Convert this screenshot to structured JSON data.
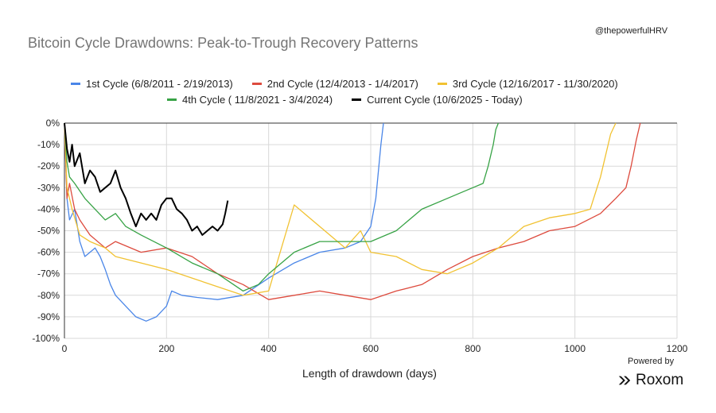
{
  "header": {
    "title": "Bitcoin Cycle Drawdowns: Peak-to-Trough Recovery Patterns",
    "handle": "@thepowerfulHRV"
  },
  "footer": {
    "powered_by": "Powered by",
    "brand": "Roxom"
  },
  "chart_data": {
    "type": "line",
    "xlabel": "Length of drawdown (days)",
    "ylabel": "",
    "xlim": [
      0,
      1200
    ],
    "ylim": [
      -100,
      0
    ],
    "xticks": [
      "0",
      "200",
      "400",
      "600",
      "800",
      "1000",
      "1200"
    ],
    "yticks": [
      "0%",
      "-10%",
      "-20%",
      "-30%",
      "-40%",
      "-50%",
      "-60%",
      "-70%",
      "-80%",
      "-90%",
      "-100%"
    ],
    "grid": true,
    "legend_position": "top",
    "series": [
      {
        "name": "1st Cycle (6/8/2011 -  2/19/2013)",
        "color": "#4a86e8",
        "x": [
          0,
          5,
          10,
          20,
          30,
          40,
          50,
          60,
          70,
          80,
          90,
          100,
          120,
          140,
          160,
          180,
          200,
          210,
          230,
          260,
          300,
          350,
          400,
          450,
          500,
          550,
          580,
          600,
          610,
          620,
          625
        ],
        "y": [
          0,
          -35,
          -45,
          -40,
          -55,
          -62,
          -60,
          -58,
          -62,
          -68,
          -75,
          -80,
          -85,
          -90,
          -92,
          -90,
          -85,
          -78,
          -80,
          -81,
          -82,
          -80,
          -72,
          -65,
          -60,
          -58,
          -55,
          -48,
          -35,
          -10,
          0
        ]
      },
      {
        "name": "2nd Cycle (12/4/2013 - 1/4/2017)",
        "color": "#dd4b3e",
        "x": [
          0,
          5,
          10,
          20,
          30,
          50,
          80,
          100,
          150,
          200,
          250,
          300,
          350,
          400,
          450,
          500,
          550,
          600,
          650,
          700,
          750,
          800,
          850,
          900,
          950,
          1000,
          1050,
          1080,
          1100,
          1110,
          1120,
          1128
        ],
        "y": [
          0,
          -35,
          -28,
          -40,
          -45,
          -52,
          -58,
          -55,
          -60,
          -58,
          -62,
          -70,
          -75,
          -82,
          -80,
          -78,
          -80,
          -82,
          -78,
          -75,
          -68,
          -62,
          -58,
          -55,
          -50,
          -48,
          -42,
          -35,
          -30,
          -20,
          -8,
          0
        ]
      },
      {
        "name": "3rd Cycle (12/16/2017 - 11/30/2020)",
        "color": "#f1c232",
        "x": [
          0,
          5,
          15,
          30,
          50,
          80,
          100,
          150,
          200,
          250,
          300,
          350,
          400,
          450,
          550,
          580,
          600,
          650,
          700,
          750,
          800,
          850,
          900,
          950,
          1000,
          1030,
          1050,
          1060,
          1070,
          1080
        ],
        "y": [
          0,
          -30,
          -40,
          -52,
          -55,
          -58,
          -62,
          -65,
          -68,
          -72,
          -76,
          -80,
          -78,
          -38,
          -58,
          -50,
          -60,
          -62,
          -68,
          -70,
          -65,
          -58,
          -48,
          -44,
          -42,
          -40,
          -25,
          -15,
          -5,
          0
        ]
      },
      {
        "name": "4th Cycle ( 11/8/2021 - 3/4/2024)",
        "color": "#38a346",
        "x": [
          0,
          5,
          10,
          20,
          40,
          60,
          80,
          100,
          120,
          150,
          200,
          250,
          300,
          350,
          380,
          400,
          450,
          500,
          550,
          600,
          650,
          700,
          750,
          780,
          800,
          820,
          830,
          840,
          845,
          850
        ],
        "y": [
          0,
          -18,
          -25,
          -28,
          -35,
          -40,
          -45,
          -42,
          -48,
          -52,
          -58,
          -65,
          -70,
          -78,
          -75,
          -70,
          -60,
          -55,
          -55,
          -55,
          -50,
          -40,
          -35,
          -32,
          -30,
          -28,
          -20,
          -10,
          -3,
          0
        ]
      },
      {
        "name": "Current Cycle (10/6/2025 - Today)",
        "color": "#000000",
        "x": [
          0,
          5,
          10,
          15,
          20,
          30,
          40,
          50,
          60,
          70,
          80,
          90,
          100,
          110,
          120,
          130,
          140,
          150,
          160,
          170,
          180,
          190,
          200,
          210,
          220,
          230,
          240,
          250,
          260,
          270,
          280,
          290,
          300,
          310,
          315,
          320
        ],
        "y": [
          0,
          -12,
          -18,
          -10,
          -20,
          -14,
          -28,
          -22,
          -25,
          -32,
          -30,
          -28,
          -22,
          -30,
          -35,
          -42,
          -48,
          -42,
          -45,
          -42,
          -45,
          -38,
          -35,
          -35,
          -40,
          -42,
          -45,
          -50,
          -48,
          -52,
          -50,
          -48,
          -50,
          -47,
          -42,
          -36
        ]
      }
    ]
  }
}
